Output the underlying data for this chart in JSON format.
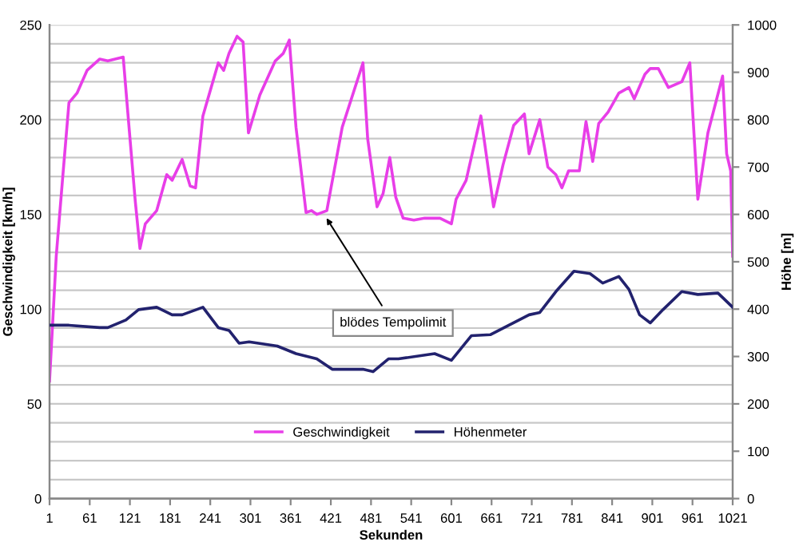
{
  "chart_data": {
    "type": "line",
    "xlabel": "Sekunden",
    "ylabel": "Geschwindigkeit [km/h]",
    "y2label": "Höhe [m]",
    "xlim": [
      1,
      1021
    ],
    "xticks": [
      1,
      61,
      121,
      181,
      241,
      301,
      361,
      421,
      481,
      541,
      601,
      661,
      721,
      781,
      841,
      901,
      961,
      1021
    ],
    "ylim": [
      0,
      250
    ],
    "yticks": [
      0,
      {
        "value": 10,
        "label": null
      },
      {
        "value": 20,
        "label": null
      },
      {
        "value": 30,
        "label": null
      },
      {
        "value": 40,
        "label": null
      },
      50,
      {
        "value": 60,
        "label": null
      },
      {
        "value": 70,
        "label": null
      },
      {
        "value": 80,
        "label": null
      },
      {
        "value": 90,
        "label": null
      },
      100,
      {
        "value": 110,
        "label": null
      },
      {
        "value": 120,
        "label": null
      },
      {
        "value": 130,
        "label": null
      },
      {
        "value": 140,
        "label": null
      },
      150,
      {
        "value": 160,
        "label": null
      },
      {
        "value": 170,
        "label": null
      },
      {
        "value": 180,
        "label": null
      },
      {
        "value": 190,
        "label": null
      },
      200,
      {
        "value": 210,
        "label": null
      },
      {
        "value": 220,
        "label": null
      },
      {
        "value": 230,
        "label": null
      },
      {
        "value": 240,
        "label": null
      },
      250
    ],
    "y2lim": [
      0,
      1000
    ],
    "y2ticks": [
      0,
      100,
      200,
      300,
      400,
      500,
      600,
      700,
      800,
      900,
      1000
    ],
    "grid": "y",
    "legend": "bottom",
    "line_style": "solid",
    "marker": "none",
    "annotations": [
      {
        "text": "blödes Tempolimit",
        "x": 411,
        "y": 150
      }
    ],
    "series": [
      {
        "name": "Geschwindigkeit",
        "color": "#e83ee8",
        "x": [
          1,
          11,
          21,
          30,
          42,
          57,
          76,
          88,
          111,
          119,
          129,
          136,
          144,
          161,
          176,
          184,
          199,
          211,
          219,
          230,
          253,
          261,
          269,
          281,
          290,
          298,
          315,
          338,
          350,
          359,
          369,
          384,
          392,
          400,
          415,
          438,
          469,
          476,
          490,
          499,
          509,
          518,
          529,
          545,
          561,
          584,
          601,
          608,
          623,
          645,
          664,
          678,
          694,
          710,
          717,
          733,
          745,
          757,
          766,
          776,
          792,
          802,
          812,
          821,
          835,
          851,
          866,
          874,
          890,
          898,
          910,
          925,
          945,
          957,
          969,
          984,
          1006,
          1012,
          1018,
          1021
        ],
        "values": [
          62,
          128,
          171,
          209,
          214,
          226,
          232,
          231,
          233,
          199,
          157,
          132,
          145,
          152,
          171,
          168,
          179,
          165,
          164,
          202,
          230,
          226,
          235,
          244,
          241,
          193,
          213,
          231,
          235,
          242,
          196,
          151,
          152,
          150,
          152,
          196,
          230,
          190,
          154,
          161,
          180,
          159,
          148,
          147,
          148,
          148,
          145,
          158,
          168,
          202,
          154,
          176,
          197,
          203,
          182,
          200,
          175,
          171,
          164,
          173,
          173,
          199,
          178,
          198,
          204,
          214,
          217,
          211,
          224,
          227,
          227,
          217,
          220,
          230,
          158,
          193,
          223,
          182,
          173,
          128
        ]
      },
      {
        "name": "Höhenmeter",
        "color": "#22226e",
        "axis": "y2",
        "x": [
          1,
          30,
          76,
          88,
          115,
          134,
          161,
          184,
          199,
          230,
          253,
          269,
          284,
          299,
          341,
          369,
          400,
          423,
          469,
          484,
          507,
          522,
          576,
          601,
          631,
          659,
          717,
          733,
          757,
          784,
          808,
          827,
          851,
          866,
          882,
          898,
          917,
          945,
          969,
          999,
          1021
        ],
        "values": [
          366,
          366,
          361,
          361,
          377,
          399,
          404,
          388,
          388,
          404,
          361,
          355,
          328,
          331,
          322,
          306,
          295,
          273,
          273,
          268,
          295,
          295,
          306,
          292,
          344,
          346,
          388,
          393,
          437,
          480,
          475,
          455,
          469,
          442,
          388,
          371,
          399,
          437,
          431,
          434,
          404
        ]
      }
    ]
  }
}
